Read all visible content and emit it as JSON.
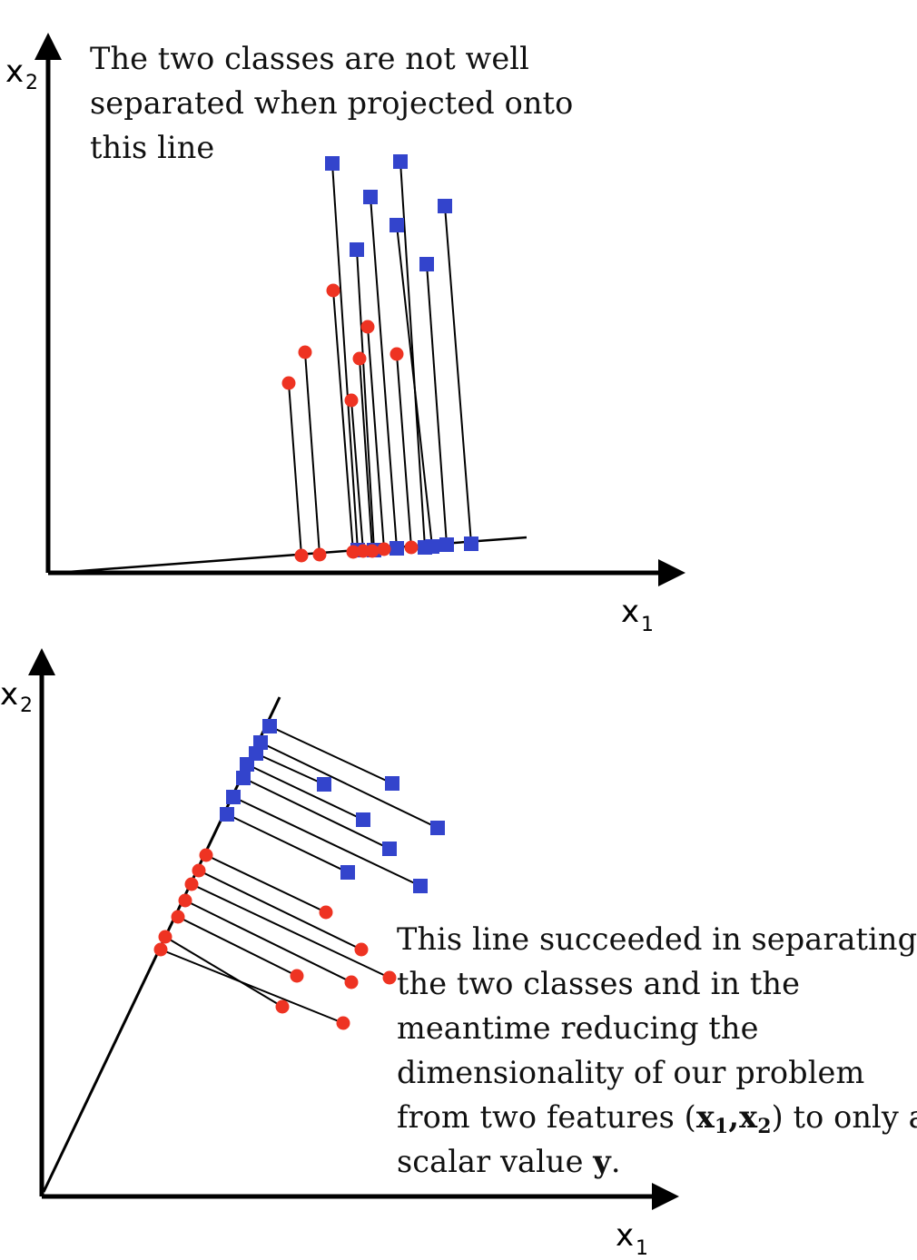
{
  "panels": [
    {
      "id": "top",
      "x_axis_label": "x",
      "x_axis_sub": "1",
      "y_axis_label": "x",
      "y_axis_sub": "2",
      "caption_lines": [
        "The two classes are not well",
        "separated when projected onto",
        "this line"
      ]
    },
    {
      "id": "bottom",
      "x_axis_label": "x",
      "x_axis_sub": "1",
      "y_axis_label": "x",
      "y_axis_sub": "2",
      "caption_lines": [
        "This line succeeded in separating",
        "the two classes and in the",
        "meantime reducing the",
        "dimensionality of our problem"
      ],
      "caption_line5": {
        "pre": "from two features (",
        "v1": "x",
        "v1_sub": "1",
        "comma": ",",
        "v2": "x",
        "v2_sub": "2",
        "post": ") to only a"
      },
      "caption_line6": {
        "pre": "scalar value ",
        "var": "y",
        "post": "."
      }
    }
  ],
  "colors": {
    "class_square": "#3344cc",
    "class_circle": "#ee3322",
    "axis": "#000000",
    "projection_line": "#000000"
  }
}
